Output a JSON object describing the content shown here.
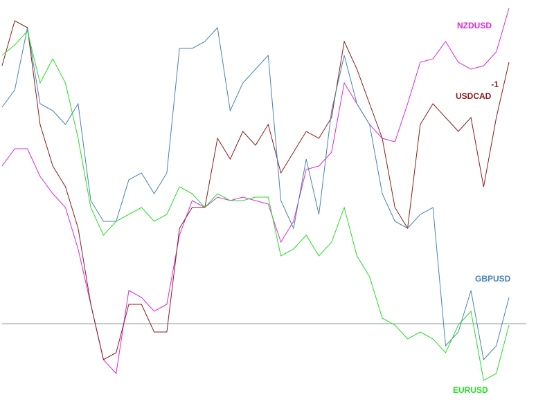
{
  "chart_data": {
    "type": "line",
    "ylim": [
      -132,
      468
    ],
    "baseline": 0,
    "series": [
      {
        "name": "NZDUSD",
        "color": "#e024e0",
        "values": [
          228,
          253,
          253,
          213,
          188,
          168,
          108,
          28,
          -52,
          -72,
          48,
          38,
          18,
          28,
          128,
          178,
          168,
          183,
          178,
          183,
          178,
          173,
          118,
          148,
          223,
          228,
          248,
          348,
          318,
          288,
          268,
          263,
          318,
          378,
          383,
          408,
          378,
          368,
          373,
          393,
          456
        ]
      },
      {
        "name": "USDCAD",
        "color": "#8b1a1a",
        "annotation": "-1",
        "values": [
          373,
          438,
          428,
          288,
          228,
          198,
          138,
          28,
          -52,
          -42,
          28,
          28,
          -12,
          -12,
          138,
          168,
          168,
          268,
          238,
          278,
          258,
          288,
          218,
          248,
          278,
          268,
          298,
          408,
          368,
          318,
          268,
          168,
          138,
          288,
          318,
          298,
          278,
          298,
          198,
          298,
          378
        ]
      },
      {
        "name": "GBPUSD",
        "color": "#4682b4",
        "values": [
          313,
          338,
          428,
          318,
          308,
          288,
          318,
          178,
          148,
          148,
          208,
          218,
          188,
          218,
          398,
          398,
          408,
          428,
          308,
          348,
          368,
          388,
          178,
          138,
          238,
          158,
          308,
          388,
          318,
          288,
          188,
          148,
          138,
          158,
          168,
          -32,
          -12,
          48,
          -52,
          -32,
          38
        ]
      },
      {
        "name": "EURUSD",
        "color": "#22e022",
        "values": [
          388,
          403,
          423,
          348,
          383,
          348,
          268,
          168,
          128,
          148,
          158,
          168,
          148,
          158,
          198,
          188,
          168,
          188,
          178,
          178,
          183,
          183,
          98,
          108,
          128,
          98,
          118,
          168,
          98,
          68,
          8,
          -2,
          -22,
          -12,
          -22,
          -42,
          -2,
          18,
          -82,
          -72,
          -2
        ]
      }
    ]
  }
}
